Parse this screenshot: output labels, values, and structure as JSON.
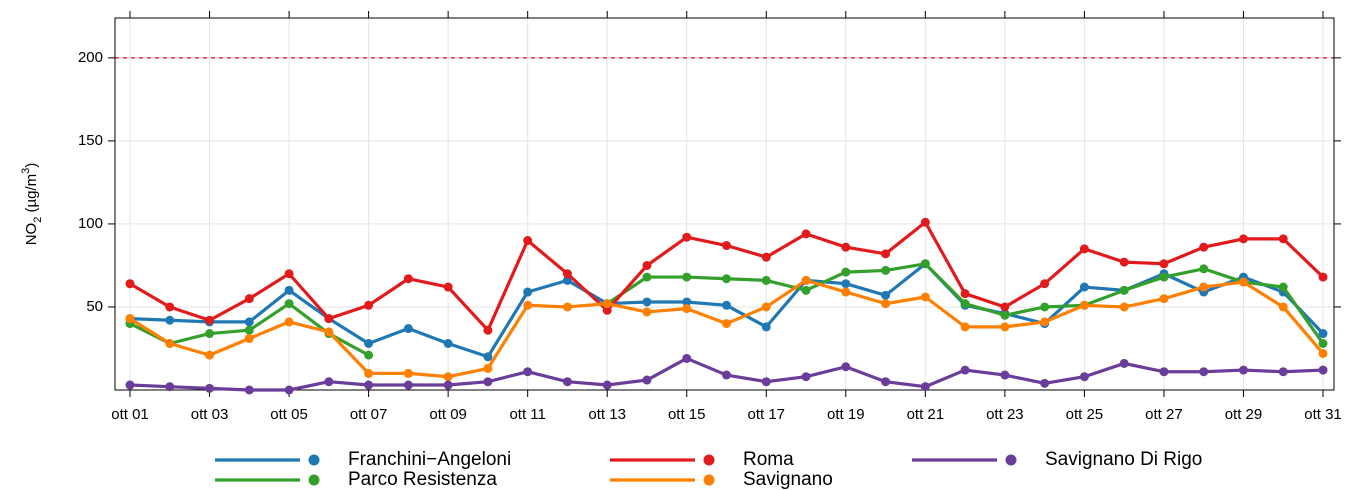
{
  "chart_data": {
    "type": "line",
    "y_label": [
      "NO",
      "2",
      " (µg/m",
      "3",
      ")"
    ],
    "categories": [
      "ott 01",
      null,
      "ott 03",
      null,
      "ott 05",
      null,
      "ott 07",
      null,
      "ott 09",
      null,
      "ott 11",
      null,
      "ott 13",
      null,
      "ott 15",
      null,
      "ott 17",
      null,
      "ott 19",
      null,
      "ott 21",
      null,
      "ott 23",
      null,
      "ott 25",
      null,
      "ott 27",
      null,
      "ott 29",
      null,
      "ott 31"
    ],
    "ylim": [
      0,
      224
    ],
    "yticks": [
      50,
      100,
      150,
      200
    ],
    "grid": true,
    "reference_line": {
      "value": 200,
      "color": "#ff0000",
      "style": "dashed"
    },
    "series": [
      {
        "name": "Franchini−Angeloni",
        "color": "#1f78b4",
        "values": [
          43,
          42,
          41,
          41,
          60,
          43,
          28,
          37,
          28,
          20,
          59,
          66,
          52,
          53,
          53,
          51,
          38,
          66,
          64,
          57,
          76,
          51,
          46,
          40,
          62,
          60,
          70,
          59,
          68,
          59,
          34
        ]
      },
      {
        "name": "Parco Resistenza",
        "color": "#33a02c",
        "values": [
          40,
          28,
          34,
          36,
          52,
          34,
          21,
          null,
          null,
          null,
          null,
          null,
          52,
          68,
          68,
          67,
          66,
          60,
          71,
          72,
          76,
          52,
          45,
          50,
          51,
          60,
          68,
          73,
          65,
          62,
          28
        ]
      },
      {
        "name": "Roma",
        "color": "#e31a1c",
        "values": [
          64,
          50,
          42,
          55,
          70,
          43,
          51,
          67,
          62,
          36,
          90,
          70,
          48,
          75,
          92,
          87,
          80,
          94,
          86,
          82,
          101,
          58,
          50,
          64,
          85,
          77,
          76,
          86,
          91,
          91,
          68
        ]
      },
      {
        "name": "Savignano",
        "color": "#ff7f00",
        "values": [
          43,
          28,
          21,
          31,
          41,
          35,
          10,
          10,
          8,
          13,
          51,
          50,
          52,
          47,
          49,
          40,
          50,
          66,
          59,
          52,
          56,
          38,
          38,
          41,
          51,
          50,
          55,
          62,
          65,
          50,
          22
        ]
      },
      {
        "name": "Savignano Di Rigo",
        "color": "#6a3d9a",
        "values": [
          3,
          2,
          1,
          0,
          0,
          5,
          3,
          3,
          3,
          5,
          11,
          5,
          3,
          6,
          19,
          9,
          5,
          8,
          14,
          5,
          2,
          12,
          9,
          4,
          8,
          16,
          11,
          11,
          12,
          11,
          12
        ]
      }
    ]
  }
}
